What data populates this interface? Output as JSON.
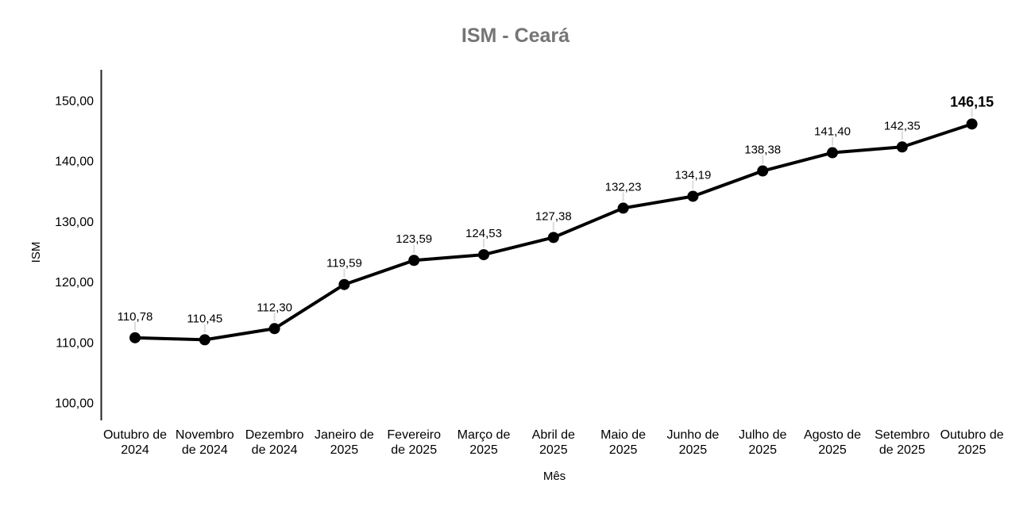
{
  "chart_data": {
    "type": "line",
    "title": "ISM - Ceará",
    "xlabel": "Mês",
    "ylabel": "ISM",
    "categories": [
      "Outubro de 2024",
      "Novembro de 2024",
      "Dezembro de 2024",
      "Janeiro de 2025",
      "Fevereiro de 2025",
      "Março de 2025",
      "Abril de 2025",
      "Maio de 2025",
      "Junho de 2025",
      "Julho de 2025",
      "Agosto de 2025",
      "Setembro de 2025",
      "Outubro de 2025"
    ],
    "category_lines": [
      [
        "Outubro de",
        "2024"
      ],
      [
        "Novembro",
        "de 2024"
      ],
      [
        "Dezembro",
        "de 2024"
      ],
      [
        "Janeiro de",
        "2025"
      ],
      [
        "Fevereiro",
        "de 2025"
      ],
      [
        "Março de",
        "2025"
      ],
      [
        "Abril de",
        "2025"
      ],
      [
        "Maio de",
        "2025"
      ],
      [
        "Junho de",
        "2025"
      ],
      [
        "Julho de",
        "2025"
      ],
      [
        "Agosto de",
        "2025"
      ],
      [
        "Setembro",
        "de 2025"
      ],
      [
        "Outubro de",
        "2025"
      ]
    ],
    "values": [
      110.78,
      110.45,
      112.3,
      119.59,
      123.59,
      124.53,
      127.38,
      132.23,
      134.19,
      138.38,
      141.4,
      142.35,
      146.15
    ],
    "value_labels": [
      "110,78",
      "110,45",
      "112,30",
      "119,59",
      "123,59",
      "124,53",
      "127,38",
      "132,23",
      "134,19",
      "138,38",
      "141,40",
      "142,35",
      "146,15"
    ],
    "emphasize_last_label": true,
    "y_ticks": [
      100,
      110,
      120,
      130,
      140,
      150
    ],
    "y_tick_labels": [
      "100,00",
      "110,00",
      "120,00",
      "130,00",
      "140,00",
      "150,00"
    ],
    "ylim": [
      100,
      150
    ],
    "grid": false,
    "legend": "none",
    "colors": {
      "line": "#000000",
      "point": "#000000",
      "title": "#757575",
      "axis": "#212121",
      "label_connector": "#dcdcdc",
      "text": "#000000"
    }
  }
}
